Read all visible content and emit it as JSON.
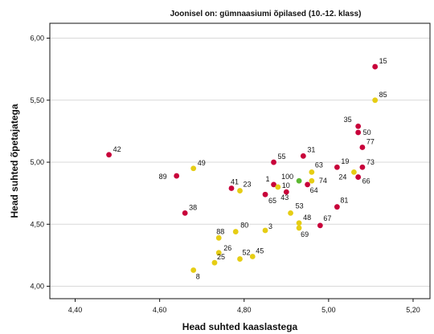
{
  "chart_data": {
    "type": "scatter",
    "title": "Joonisel on: gümnaasiumi õpilased (10.-12. klass)",
    "xlabel": "Head suhted kaaslastega",
    "ylabel": "Head suhted õpetajatega",
    "xlim": [
      4.34,
      5.24
    ],
    "ylim": [
      3.9,
      6.12
    ],
    "xticks": [
      "4,40",
      "4,60",
      "4,80",
      "5,00",
      "5,20"
    ],
    "yticks": [
      "4,00",
      "4,50",
      "5,00",
      "5,50",
      "6,00"
    ],
    "grid": "horizontal",
    "legend": "none",
    "colors": {
      "crimson": "#c8003a",
      "gold": "#e6cd14",
      "green": "#5cb832",
      "grid": "#d9d9d9",
      "axis": "#111111"
    },
    "points": [
      {
        "label": "15",
        "x": 5.11,
        "y": 5.77,
        "color": "crimson"
      },
      {
        "label": "85",
        "x": 5.11,
        "y": 5.5,
        "color": "gold"
      },
      {
        "label": "42",
        "x": 4.48,
        "y": 5.06,
        "color": "crimson"
      },
      {
        "label": "49",
        "x": 4.68,
        "y": 4.95,
        "color": "gold"
      },
      {
        "label": "89",
        "x": 4.64,
        "y": 4.89,
        "color": "crimson"
      },
      {
        "label": "38",
        "x": 4.66,
        "y": 4.59,
        "color": "crimson"
      },
      {
        "label": "35",
        "x": 5.07,
        "y": 5.29,
        "color": "crimson"
      },
      {
        "label": "50",
        "x": 5.07,
        "y": 5.24,
        "color": "crimson"
      },
      {
        "label": "77",
        "x": 5.08,
        "y": 5.12,
        "color": "crimson"
      },
      {
        "label": "73",
        "x": 5.08,
        "y": 4.96,
        "color": "crimson"
      },
      {
        "label": "19",
        "x": 5.02,
        "y": 4.96,
        "color": "crimson"
      },
      {
        "label": "66",
        "x": 5.07,
        "y": 4.88,
        "color": "crimson"
      },
      {
        "label": "24",
        "x": 5.06,
        "y": 4.92,
        "color": "gold"
      },
      {
        "label": "55",
        "x": 4.87,
        "y": 5.0,
        "color": "crimson"
      },
      {
        "label": "31",
        "x": 4.94,
        "y": 5.05,
        "color": "crimson"
      },
      {
        "label": "63",
        "x": 4.96,
        "y": 4.92,
        "color": "gold"
      },
      {
        "label": "100",
        "x": 4.93,
        "y": 4.85,
        "color": "green"
      },
      {
        "label": "74",
        "x": 4.96,
        "y": 4.85,
        "color": "gold"
      },
      {
        "label": "64",
        "x": 4.95,
        "y": 4.82,
        "color": "crimson"
      },
      {
        "label": "1",
        "x": 4.87,
        "y": 4.82,
        "color": "crimson"
      },
      {
        "label": "10",
        "x": 4.88,
        "y": 4.8,
        "color": "gold"
      },
      {
        "label": "41",
        "x": 4.77,
        "y": 4.79,
        "color": "crimson"
      },
      {
        "label": "23",
        "x": 4.79,
        "y": 4.77,
        "color": "gold"
      },
      {
        "label": "43",
        "x": 4.9,
        "y": 4.76,
        "color": "crimson"
      },
      {
        "label": "65",
        "x": 4.85,
        "y": 4.74,
        "color": "crimson"
      },
      {
        "label": "81",
        "x": 5.02,
        "y": 4.64,
        "color": "crimson"
      },
      {
        "label": "53",
        "x": 4.91,
        "y": 4.59,
        "color": "gold"
      },
      {
        "label": "48",
        "x": 4.93,
        "y": 4.51,
        "color": "gold"
      },
      {
        "label": "67",
        "x": 4.98,
        "y": 4.49,
        "color": "crimson"
      },
      {
        "label": "69",
        "x": 4.93,
        "y": 4.47,
        "color": "gold"
      },
      {
        "label": "3",
        "x": 4.85,
        "y": 4.45,
        "color": "gold"
      },
      {
        "label": "80",
        "x": 4.78,
        "y": 4.44,
        "color": "gold"
      },
      {
        "label": "88",
        "x": 4.74,
        "y": 4.39,
        "color": "gold"
      },
      {
        "label": "26",
        "x": 4.74,
        "y": 4.27,
        "color": "gold"
      },
      {
        "label": "45",
        "x": 4.82,
        "y": 4.24,
        "color": "gold"
      },
      {
        "label": "52",
        "x": 4.79,
        "y": 4.22,
        "color": "gold"
      },
      {
        "label": "25",
        "x": 4.73,
        "y": 4.19,
        "color": "gold"
      },
      {
        "label": "8",
        "x": 4.68,
        "y": 4.13,
        "color": "gold"
      }
    ]
  }
}
